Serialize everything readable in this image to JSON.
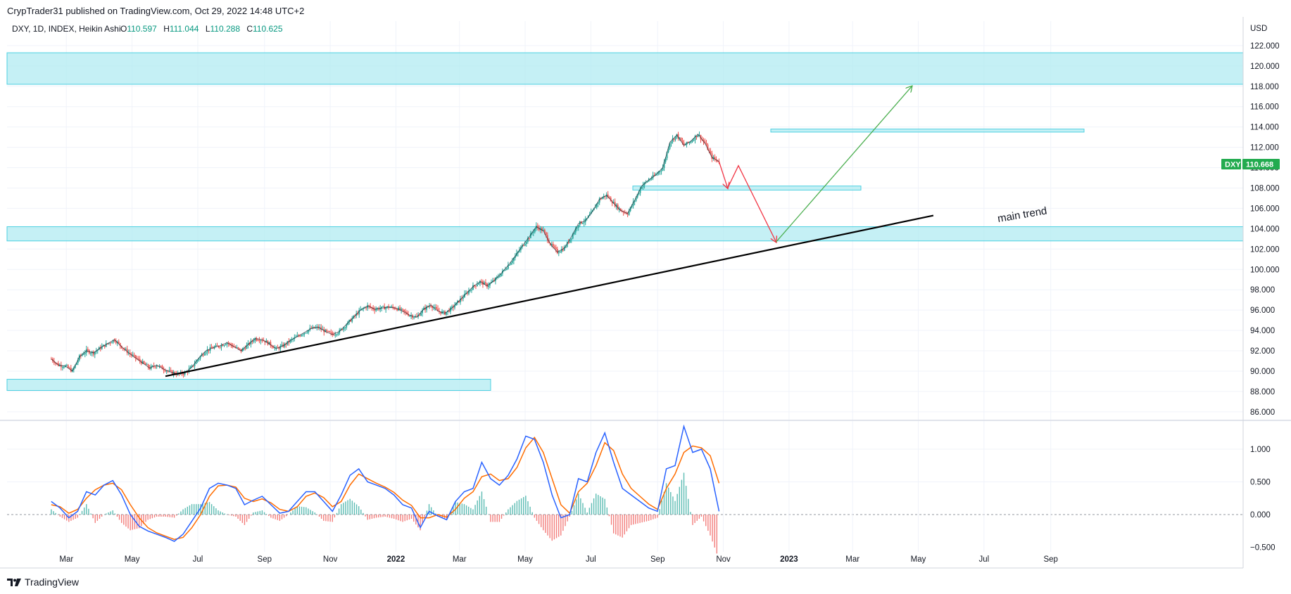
{
  "header": {
    "published_line": "CrypTrader31 published on TradingView.com, Oct 29, 2022 14:48 UTC+2"
  },
  "legend": {
    "symbol_line": "DXY, 1D, INDEX, Heikin Ashi",
    "open_label": "O",
    "open_value": "110.597",
    "high_label": "H",
    "high_value": "111.044",
    "low_label": "L",
    "low_value": "110.288",
    "close_label": "C",
    "close_value": "110.625"
  },
  "price_axis": {
    "unit": "USD",
    "ticks": [
      "122.000",
      "120.000",
      "118.000",
      "116.000",
      "114.000",
      "112.000",
      "110.000",
      "108.000",
      "106.000",
      "104.000",
      "102.000",
      "100.000",
      "98.000",
      "96.000",
      "94.000",
      "92.000",
      "90.000",
      "88.000",
      "86.000"
    ]
  },
  "macd_axis": {
    "ticks": [
      "1.000",
      "0.500",
      "0.000",
      "−0.500"
    ]
  },
  "time_axis": {
    "labels": [
      "Mar",
      "May",
      "Jul",
      "Sep",
      "Nov",
      "2022",
      "Mar",
      "May",
      "Jul",
      "Sep",
      "Nov",
      "2023",
      "Mar",
      "May",
      "Jul",
      "Sep"
    ]
  },
  "price_badge": {
    "symbol": "DXY",
    "value": "110.668"
  },
  "annotation": {
    "text": "main trend"
  },
  "footer": {
    "brand": "TradingView"
  },
  "colors": {
    "up": "#26a69a",
    "down": "#ef5350",
    "zone_fill": "#b2ebf2",
    "zone_border": "#4dd0e1",
    "macd_line": "#2962ff",
    "signal_line": "#ff6d00",
    "projection_up": "#4caf50",
    "projection_down": "#f23645",
    "badge": "#22ab4f",
    "trend": "#000000"
  },
  "chart_data": [
    {
      "type": "candlestick",
      "title": "DXY, 1D, INDEX, Heikin Ashi",
      "xlabel": "",
      "ylabel": "USD",
      "ylim": [
        85,
        123
      ],
      "x_start": "2021-02-15",
      "x_end": "2022-10-28",
      "weekly_close": [
        91.2,
        90.6,
        90.5,
        90.0,
        91.4,
        92.0,
        91.8,
        92.3,
        92.7,
        93.1,
        92.4,
        91.8,
        91.3,
        90.8,
        90.3,
        90.6,
        90.2,
        89.9,
        89.7,
        89.8,
        90.4,
        91.3,
        92.0,
        92.3,
        92.5,
        92.8,
        92.4,
        92.0,
        92.6,
        93.2,
        93.1,
        92.7,
        92.2,
        92.5,
        93.0,
        93.4,
        93.8,
        94.2,
        94.3,
        93.9,
        93.6,
        93.9,
        94.6,
        95.3,
        96.0,
        96.4,
        96.1,
        96.2,
        96.3,
        96.2,
        95.9,
        95.5,
        95.3,
        96.1,
        96.5,
        95.9,
        95.7,
        96.2,
        96.9,
        97.6,
        98.3,
        98.8,
        98.4,
        98.9,
        99.6,
        100.4,
        101.3,
        102.3,
        103.2,
        104.2,
        103.8,
        102.5,
        101.7,
        102.1,
        103.2,
        104.5,
        104.8,
        105.7,
        106.9,
        107.3,
        106.5,
        105.8,
        105.5,
        106.8,
        108.2,
        108.8,
        109.3,
        110.0,
        112.5,
        113.2,
        112.2,
        112.6,
        113.3,
        112.4,
        111.0,
        110.6
      ],
      "zones": [
        {
          "from": 118.2,
          "to": 121.3
        },
        {
          "from": 102.8,
          "to": 104.2
        },
        {
          "from": 88.1,
          "to": 89.2
        },
        {
          "from": 107.8,
          "to": 108.2
        },
        {
          "from": 113.5,
          "to": 113.8
        }
      ],
      "trendline": {
        "from": [
          "2021-06-01",
          89.5
        ],
        "to": [
          "2023-05-15",
          105.3
        ],
        "label": "main trend"
      },
      "projection": {
        "down": [
          [
            "2022-10-28",
            110.6
          ],
          [
            "2022-11-05",
            108.0
          ],
          [
            "2022-11-15",
            110.2
          ],
          [
            "2022-12-20",
            102.7
          ]
        ],
        "up": [
          [
            "2022-12-20",
            102.7
          ],
          [
            "2023-04-25",
            118.0
          ]
        ]
      },
      "last_price": 110.668
    },
    {
      "type": "line",
      "title": "",
      "ylim": [
        -0.55,
        1.5
      ],
      "series": [
        {
          "values": [
            0.2,
            0.1,
            -0.05,
            0.05,
            0.35,
            0.3,
            0.45,
            0.52,
            0.3,
            0.0,
            -0.18,
            -0.25,
            -0.3,
            -0.35,
            -0.41,
            -0.3,
            -0.1,
            0.1,
            0.4,
            0.48,
            0.45,
            0.4,
            0.15,
            0.22,
            0.28,
            0.15,
            0.02,
            0.05,
            0.2,
            0.35,
            0.35,
            0.2,
            0.05,
            0.3,
            0.6,
            0.7,
            0.5,
            0.45,
            0.4,
            0.3,
            0.15,
            0.1,
            -0.2,
            0.05,
            -0.02,
            -0.08,
            0.2,
            0.35,
            0.4,
            0.8,
            0.55,
            0.45,
            0.6,
            0.85,
            1.2,
            1.15,
            0.8,
            0.3,
            -0.05,
            0.0,
            0.55,
            0.5,
            0.95,
            1.25,
            0.8,
            0.4,
            0.3,
            0.2,
            0.1,
            0.05,
            0.7,
            0.75,
            1.35,
            0.95,
            1.0,
            0.7,
            0.05
          ]
        },
        {
          "values": [
            0.15,
            0.12,
            0.02,
            0.08,
            0.25,
            0.38,
            0.45,
            0.48,
            0.38,
            0.15,
            -0.05,
            -0.2,
            -0.28,
            -0.33,
            -0.38,
            -0.35,
            -0.2,
            0.0,
            0.28,
            0.44,
            0.45,
            0.42,
            0.25,
            0.2,
            0.24,
            0.18,
            0.08,
            0.05,
            0.12,
            0.28,
            0.33,
            0.26,
            0.12,
            0.2,
            0.45,
            0.62,
            0.55,
            0.48,
            0.42,
            0.34,
            0.22,
            0.14,
            -0.05,
            -0.05,
            0.0,
            -0.04,
            0.08,
            0.25,
            0.35,
            0.58,
            0.62,
            0.52,
            0.55,
            0.72,
            1.02,
            1.18,
            0.95,
            0.55,
            0.15,
            0.02,
            0.35,
            0.48,
            0.75,
            1.1,
            0.98,
            0.62,
            0.4,
            0.28,
            0.16,
            0.08,
            0.4,
            0.62,
            0.95,
            1.05,
            1.02,
            0.9,
            0.48
          ]
        }
      ]
    }
  ]
}
